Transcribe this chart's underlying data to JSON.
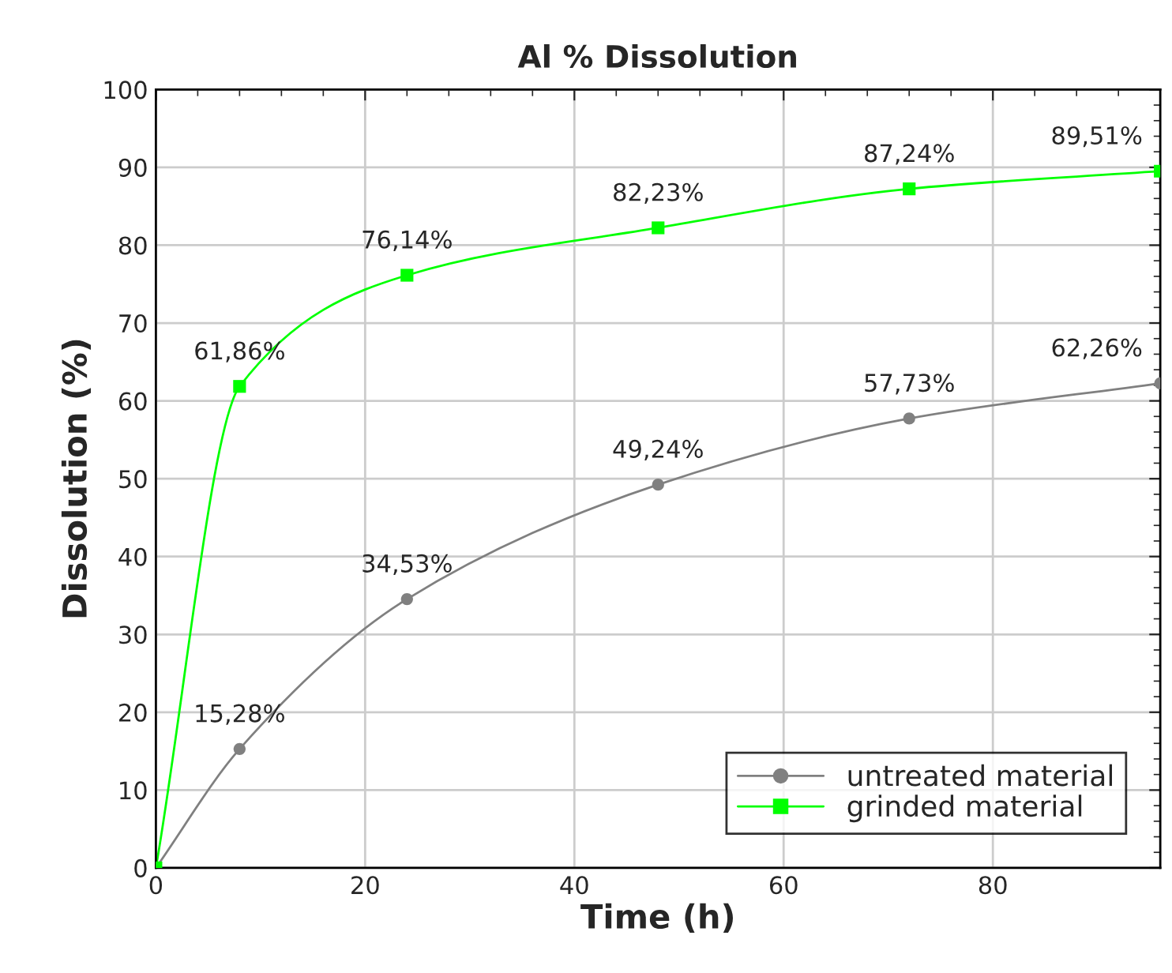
{
  "chart_data": {
    "type": "line",
    "title": "Al % Dissolution",
    "xlabel": "Time (h)",
    "ylabel": "Dissolution (%)",
    "x": [
      0,
      8,
      24,
      48,
      72,
      96
    ],
    "series": [
      {
        "name": "untreated material",
        "color": "#808080",
        "marker": "circle",
        "values": [
          0,
          15.28,
          34.53,
          49.24,
          57.73,
          62.26
        ],
        "value_labels": [
          null,
          "15,28%",
          "34,53%",
          "49,24%",
          "57,73%",
          "62,26%"
        ]
      },
      {
        "name": "grinded material",
        "color": "#00ff00",
        "marker": "square",
        "values": [
          0,
          61.86,
          76.14,
          82.23,
          87.24,
          89.51
        ],
        "value_labels": [
          null,
          "61,86%",
          "76,14%",
          "82,23%",
          "87,24%",
          "89,51%"
        ]
      }
    ],
    "xlim": [
      0,
      96
    ],
    "xticks": [
      0,
      20,
      40,
      60,
      80
    ],
    "ylim": [
      0,
      100
    ],
    "yticks": [
      0,
      10,
      20,
      30,
      40,
      50,
      60,
      70,
      80,
      90,
      100
    ],
    "grid": true,
    "legend": "bottom right",
    "line_style": "solid"
  }
}
